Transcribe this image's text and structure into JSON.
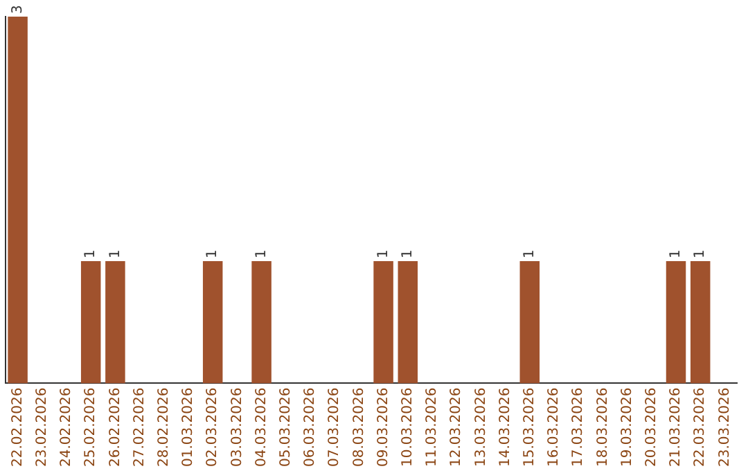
{
  "chart_data": {
    "type": "bar",
    "categories": [
      "22.02.2026",
      "23.02.2026",
      "24.02.2026",
      "25.02.2026",
      "26.02.2026",
      "27.02.2026",
      "28.02.2026",
      "01.03.2026",
      "02.03.2026",
      "03.03.2026",
      "04.03.2026",
      "05.03.2026",
      "06.03.2026",
      "07.03.2026",
      "08.03.2026",
      "09.03.2026",
      "10.03.2026",
      "11.03.2026",
      "12.03.2026",
      "13.03.2026",
      "14.03.2026",
      "15.03.2026",
      "16.03.2026",
      "17.03.2026",
      "18.03.2026",
      "19.03.2026",
      "20.03.2026",
      "21.03.2026",
      "22.03.2026",
      "23.03.2026"
    ],
    "values": [
      3,
      0,
      0,
      1,
      1,
      0,
      0,
      0,
      1,
      0,
      1,
      0,
      0,
      0,
      0,
      1,
      1,
      0,
      0,
      0,
      0,
      1,
      0,
      0,
      0,
      0,
      0,
      1,
      1,
      0
    ],
    "value_labels": [
      "3",
      null,
      null,
      "1",
      "1",
      null,
      null,
      null,
      "1",
      null,
      "1",
      null,
      null,
      null,
      null,
      "1",
      "1",
      null,
      null,
      null,
      null,
      "1",
      null,
      null,
      null,
      null,
      null,
      "1",
      "1",
      null
    ],
    "color": "#a0522d",
    "ylim": [
      0,
      3
    ],
    "tick_labels": "x",
    "grid": false,
    "legend": false
  }
}
